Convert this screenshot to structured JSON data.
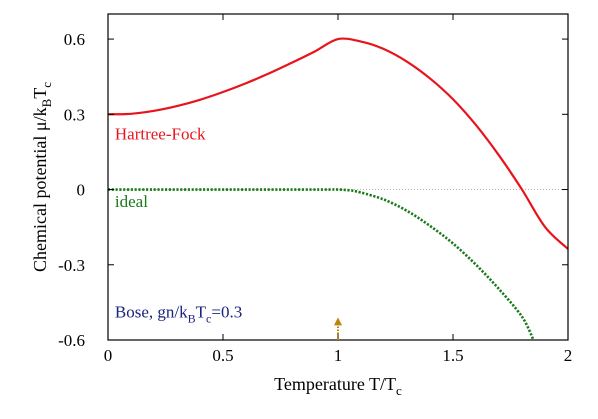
{
  "chart_data": {
    "type": "line",
    "xlabel": "Temperature T/T",
    "xlabel_sub": "c",
    "ylabel": "Chemical potential μ/k",
    "ylabel_sub_B": "B",
    "ylabel_mid": "T",
    "ylabel_sub_c": "c",
    "xlim": [
      0,
      2
    ],
    "ylim": [
      -0.6,
      0.7
    ],
    "x_ticks": [
      0,
      0.5,
      1,
      1.5,
      2
    ],
    "x_tick_labels": [
      "0",
      "0.5",
      "1",
      "1.5",
      "2"
    ],
    "y_ticks": [
      -0.6,
      -0.3,
      0,
      0.3,
      0.6
    ],
    "y_tick_labels": [
      "-0.6",
      "-0.3",
      "0",
      "0.3",
      "0.6"
    ],
    "grid": false,
    "zero_line": true,
    "series": [
      {
        "name": "Hartree-Fock",
        "color": "#e8141c",
        "style": "solid",
        "x": [
          0,
          0.1,
          0.2,
          0.3,
          0.4,
          0.5,
          0.6,
          0.7,
          0.8,
          0.9,
          1.0,
          1.1,
          1.2,
          1.3,
          1.4,
          1.5,
          1.6,
          1.7,
          1.8,
          1.9,
          2.0
        ],
        "y": [
          0.3,
          0.302,
          0.314,
          0.333,
          0.358,
          0.389,
          0.424,
          0.463,
          0.506,
          0.551,
          0.6,
          0.59,
          0.56,
          0.51,
          0.443,
          0.36,
          0.257,
          0.136,
          0.0,
          -0.149,
          -0.237
        ]
      },
      {
        "name": "ideal",
        "color": "#1a7a1a",
        "style": "dotted",
        "x": [
          0,
          0.2,
          0.4,
          0.6,
          0.8,
          0.95,
          1.0,
          1.05,
          1.1,
          1.2,
          1.3,
          1.4,
          1.5,
          1.6,
          1.7,
          1.8,
          1.85
        ],
        "y": [
          0,
          0,
          0,
          0,
          0,
          0,
          0,
          -0.003,
          -0.012,
          -0.04,
          -0.085,
          -0.145,
          -0.215,
          -0.3,
          -0.397,
          -0.507,
          -0.6
        ]
      }
    ],
    "annotations": [
      {
        "name": "label-hartree-fock",
        "text": "Hartree-Fock",
        "x": 0.03,
        "y": 0.2,
        "color": "#e8141c"
      },
      {
        "name": "label-ideal",
        "text": "ideal",
        "x": 0.03,
        "y": -0.07,
        "color": "#1a7a1a"
      },
      {
        "name": "label-bose",
        "text": "Bose, gn/k",
        "sub1": "B",
        "mid": "T",
        "sub2": "c",
        "tail": "=0.3",
        "x": 0.03,
        "y": -0.51,
        "color": "#1a237e"
      }
    ],
    "arrow": {
      "x": 1.0,
      "y_from": -0.6,
      "y_to": -0.51,
      "color": "#b8860b"
    }
  }
}
